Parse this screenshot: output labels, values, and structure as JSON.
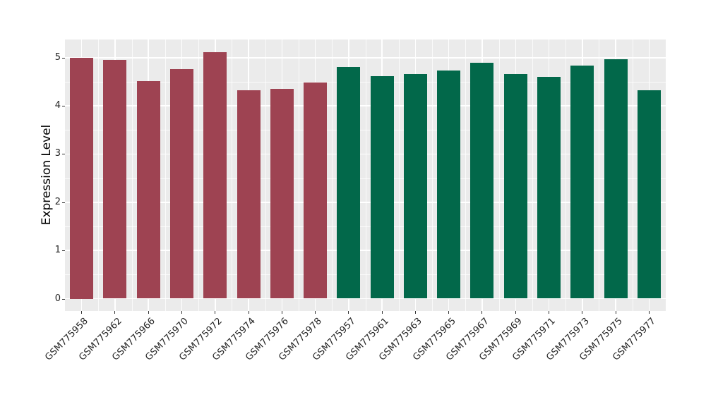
{
  "chart_data": {
    "type": "bar",
    "title": "",
    "xlabel": "",
    "ylabel": "Expression Level",
    "ylim": [
      0,
      5.38
    ],
    "yticks": [
      0,
      1,
      2,
      3,
      4,
      5
    ],
    "y_minor_gridlines": [
      0.5,
      1.5,
      2.5,
      3.5,
      4.5
    ],
    "grid": "white major and minor gridlines on gray panel",
    "legend_position": "none",
    "categories": [
      "GSM775958",
      "GSM775962",
      "GSM775966",
      "GSM775970",
      "GSM775972",
      "GSM775974",
      "GSM775976",
      "GSM775978",
      "GSM775957",
      "GSM775961",
      "GSM775963",
      "GSM775965",
      "GSM775967",
      "GSM775969",
      "GSM775971",
      "GSM775973",
      "GSM775975",
      "GSM775977"
    ],
    "values": [
      5.0,
      4.95,
      4.51,
      4.76,
      5.11,
      4.33,
      4.35,
      4.48,
      4.81,
      4.62,
      4.66,
      4.74,
      4.89,
      4.66,
      4.6,
      4.83,
      4.96,
      4.33
    ],
    "bar_groups": [
      "maroon",
      "maroon",
      "maroon",
      "maroon",
      "maroon",
      "maroon",
      "maroon",
      "maroon",
      "green",
      "green",
      "green",
      "green",
      "green",
      "green",
      "green",
      "green",
      "green",
      "green"
    ],
    "group_colors": {
      "maroon": "#9E4352",
      "green": "#02684A"
    },
    "panel_background": "#EBEBEB",
    "gridline_color": "#FFFFFF",
    "axis_text_color": "#262626"
  }
}
